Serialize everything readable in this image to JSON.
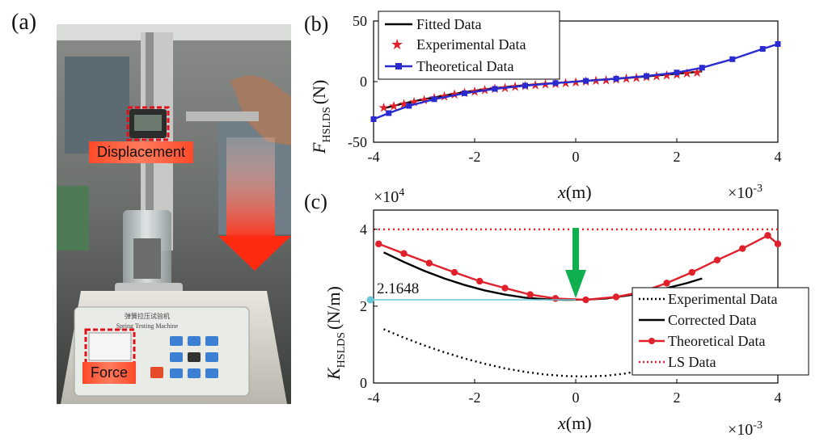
{
  "photo": {
    "panel_label": "(a)",
    "displacement_tag": "Displacement",
    "force_tag": "Force",
    "machine_label_cn": "弹簧拉压试验机",
    "machine_label_en": "Spring Testing Machine"
  },
  "chart_data": [
    {
      "type": "line",
      "panel_label": "(b)",
      "xlabel_var": "x",
      "xlabel_unit": "(m)",
      "ylabel_var": "F",
      "ylabel_sub": "HSLDS",
      "ylabel_unit": "(N)",
      "x_multiplier": "×10",
      "x_multiplier_exp": "-3",
      "xlim": [
        -4,
        4
      ],
      "ylim": [
        -50,
        50
      ],
      "xticks": [
        "-4",
        "-2",
        "0",
        "2",
        "4"
      ],
      "yticks": [
        "-50",
        "0",
        "50"
      ],
      "legend_position": "top-left",
      "series": [
        {
          "name": "Fitted Data",
          "style": "solid",
          "color": "#000000",
          "x": [
            -3.8,
            -3.4,
            -3.0,
            -2.6,
            -2.2,
            -1.8,
            -1.4,
            -1.0,
            -0.6,
            -0.2,
            0.2,
            0.6,
            1.0,
            1.4,
            1.8,
            2.2,
            2.5
          ],
          "y": [
            -22,
            -18,
            -14.5,
            -11.5,
            -8.7,
            -6.4,
            -4.5,
            -3.0,
            -1.8,
            -0.6,
            0.6,
            1.8,
            3.0,
            4.3,
            5.8,
            7.3,
            8.5
          ]
        },
        {
          "name": "Experimental Data",
          "style": "star",
          "color": "#e0202a",
          "x": [
            -3.8,
            -3.6,
            -3.4,
            -3.2,
            -3.0,
            -2.8,
            -2.6,
            -2.4,
            -2.2,
            -2.0,
            -1.8,
            -1.6,
            -1.4,
            -1.2,
            -1.0,
            -0.8,
            -0.6,
            -0.4,
            -0.2,
            0.0,
            0.2,
            0.4,
            0.6,
            0.8,
            1.0,
            1.2,
            1.4,
            1.6,
            1.8,
            2.0,
            2.2,
            2.4
          ],
          "y": [
            -21,
            -19.5,
            -18,
            -16.2,
            -14.5,
            -13,
            -11.5,
            -10,
            -8.7,
            -7.5,
            -6.4,
            -5.4,
            -4.5,
            -3.7,
            -3.0,
            -2.4,
            -1.8,
            -1.2,
            -0.6,
            0,
            0.6,
            1.2,
            1.8,
            2.4,
            3.0,
            3.7,
            4.3,
            5.0,
            5.8,
            6.5,
            7.3,
            8.0
          ]
        },
        {
          "name": "Theoretical Data",
          "style": "square",
          "color": "#2a2ad0",
          "x": [
            -4.0,
            -3.7,
            -3.3,
            -2.8,
            -2.2,
            -1.6,
            -1.0,
            -0.4,
            0.2,
            0.8,
            1.4,
            2.0,
            2.5,
            3.1,
            3.7,
            4.0
          ],
          "y": [
            -31,
            -26,
            -20,
            -14.5,
            -9.6,
            -6.0,
            -3.3,
            -1.2,
            0.6,
            2.4,
            4.6,
            7.5,
            11.5,
            18.5,
            27,
            31
          ]
        }
      ]
    },
    {
      "type": "line",
      "panel_label": "(c)",
      "xlabel_var": "x",
      "xlabel_unit": "(m)",
      "ylabel_var": "K",
      "ylabel_sub": "HSLDS",
      "ylabel_unit": "(N/m)",
      "x_multiplier": "×10",
      "x_multiplier_exp": "-3",
      "y_multiplier": "×10",
      "y_multiplier_exp": "4",
      "xlim": [
        -4,
        4
      ],
      "ylim": [
        0,
        4.5
      ],
      "xticks": [
        "-4",
        "-2",
        "0",
        "2",
        "4"
      ],
      "yticks": [
        "0",
        "2",
        "4"
      ],
      "legend_position": "bottom-right",
      "annotation_value": "2.1648",
      "annotation_y": 2.1648,
      "arrow_color": "#10b050",
      "series": [
        {
          "name": "Experimental Data",
          "style": "dotted",
          "color": "#000000",
          "x": [
            -3.8,
            -3.4,
            -3.0,
            -2.6,
            -2.2,
            -1.8,
            -1.4,
            -1.0,
            -0.6,
            -0.2,
            0.2,
            0.6,
            1.0,
            1.4,
            1.8,
            2.2,
            2.5
          ],
          "y": [
            1.4,
            1.18,
            0.98,
            0.8,
            0.64,
            0.5,
            0.38,
            0.29,
            0.22,
            0.18,
            0.17,
            0.19,
            0.25,
            0.36,
            0.52,
            0.72,
            0.9
          ]
        },
        {
          "name": "Corrected Data",
          "style": "solid",
          "color": "#000000",
          "x": [
            -3.8,
            -3.4,
            -3.0,
            -2.6,
            -2.2,
            -1.8,
            -1.4,
            -1.0,
            -0.6,
            -0.2,
            0.2,
            0.6,
            1.0,
            1.4,
            1.8,
            2.2,
            2.5
          ],
          "y": [
            3.4,
            3.15,
            2.92,
            2.72,
            2.55,
            2.41,
            2.3,
            2.22,
            2.18,
            2.165,
            2.17,
            2.2,
            2.27,
            2.36,
            2.47,
            2.6,
            2.72
          ]
        },
        {
          "name": "Theoretical Data",
          "style": "dot",
          "color": "#e0202a",
          "x": [
            -3.9,
            -3.4,
            -2.9,
            -2.4,
            -1.9,
            -1.4,
            -0.9,
            -0.4,
            0.2,
            0.8,
            1.3,
            1.8,
            2.3,
            2.8,
            3.3,
            3.8,
            4.0
          ],
          "y": [
            3.62,
            3.37,
            3.12,
            2.88,
            2.65,
            2.47,
            2.3,
            2.2,
            2.165,
            2.24,
            2.37,
            2.6,
            2.88,
            3.2,
            3.5,
            3.84,
            3.62
          ]
        },
        {
          "name": "LS Data",
          "style": "dotted",
          "color": "#e0202a",
          "x": [
            -4,
            4
          ],
          "y": [
            4.0,
            4.0
          ]
        }
      ]
    }
  ]
}
